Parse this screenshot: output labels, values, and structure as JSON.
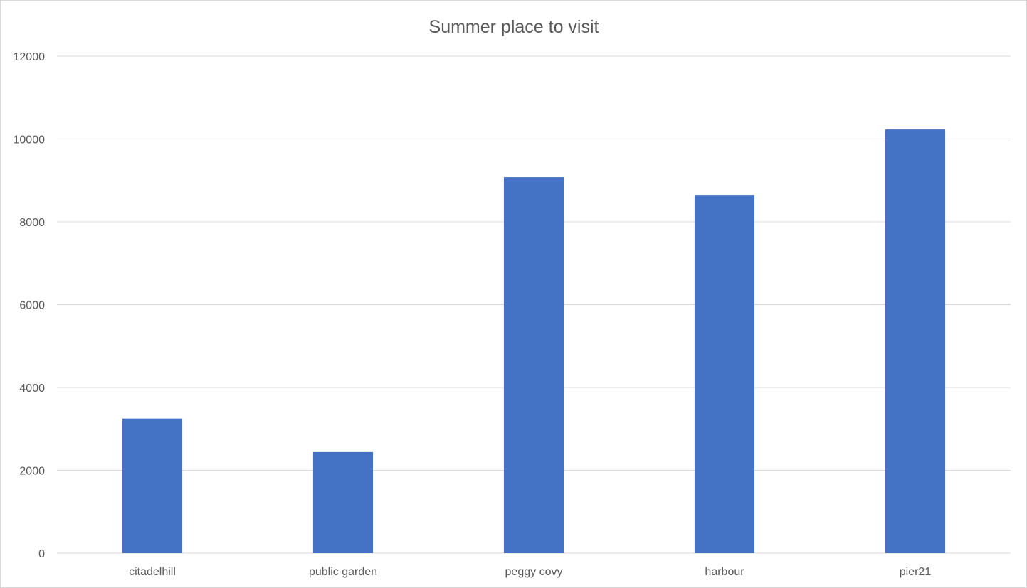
{
  "chart_data": {
    "type": "bar",
    "title": "Summer  place to visit",
    "categories": [
      "citadelhill",
      "public garden",
      "peggy covy",
      "harbour",
      "pier21"
    ],
    "series": [
      {
        "values": [
          3250,
          2440,
          9080,
          8650,
          10230
        ],
        "color": "#4472c4"
      }
    ],
    "ylim": [
      0,
      12000
    ],
    "yticks": [
      0,
      2000,
      4000,
      6000,
      8000,
      10000,
      12000
    ],
    "xlabel": "",
    "ylabel": "",
    "grid": true,
    "legend": "none"
  }
}
